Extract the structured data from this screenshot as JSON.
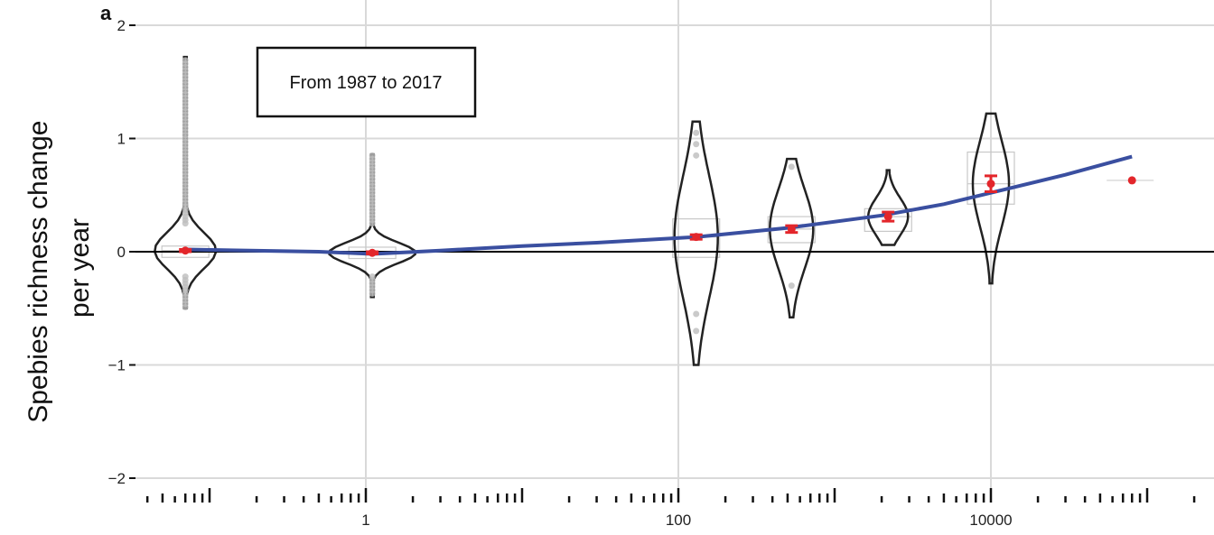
{
  "panel_label": "a",
  "annotation": "From 1987 to 2017",
  "colors": {
    "fit_line": "#3a4fa0",
    "mean_marker": "#e3262b",
    "violin_outline": "#222222",
    "outlier_points": "#bdbdbd",
    "grid": "#d9d9d9",
    "zero_line": "#000000"
  },
  "chart_data": {
    "type": "violin",
    "title": "",
    "xlabel": "",
    "ylabel": "Spebies richness change per year",
    "x_scale": "log10",
    "xlim": [
      0.01,
      130000
    ],
    "ylim": [
      -2,
      2
    ],
    "x_ticks": [
      1,
      100,
      10000
    ],
    "x_tick_labels": [
      "1",
      "100",
      "10000"
    ],
    "y_ticks": [
      -2,
      -1,
      0,
      1,
      2
    ],
    "y_tick_labels": [
      "−2",
      "−1",
      "0",
      "1",
      "2"
    ],
    "grid": true,
    "groups": [
      {
        "x": 0.07,
        "mean": 0.01,
        "se": 0.01,
        "min": -0.5,
        "max": 1.72,
        "box": [
          -0.05,
          0.05
        ]
      },
      {
        "x": 1.1,
        "mean": -0.01,
        "se": 0.01,
        "min": -0.4,
        "max": 0.86,
        "box": [
          -0.06,
          0.04
        ]
      },
      {
        "x": 130,
        "mean": 0.13,
        "se": 0.02,
        "min": -1.0,
        "max": 1.15,
        "box": [
          -0.05,
          0.29
        ]
      },
      {
        "x": 530,
        "mean": 0.2,
        "se": 0.03,
        "min": -0.58,
        "max": 0.82,
        "box": [
          0.08,
          0.31
        ]
      },
      {
        "x": 2200,
        "mean": 0.31,
        "se": 0.04,
        "min": 0.06,
        "max": 0.72,
        "box": [
          0.18,
          0.38
        ]
      },
      {
        "x": 10000,
        "mean": 0.6,
        "se": 0.07,
        "min": -0.28,
        "max": 1.22,
        "box": [
          0.42,
          0.88
        ]
      },
      {
        "x": 80000,
        "mean": 0.63,
        "se": 0,
        "min": 0.63,
        "max": 0.63,
        "box": [
          0.63,
          0.63
        ]
      }
    ],
    "fit_line": {
      "x": [
        0.07,
        0.5,
        1.1,
        3,
        10,
        30,
        130,
        500,
        2000,
        5000,
        10000,
        30000,
        80000
      ],
      "y": [
        0.02,
        0.0,
        -0.02,
        0.01,
        0.05,
        0.08,
        0.13,
        0.21,
        0.32,
        0.42,
        0.52,
        0.68,
        0.84
      ]
    }
  }
}
